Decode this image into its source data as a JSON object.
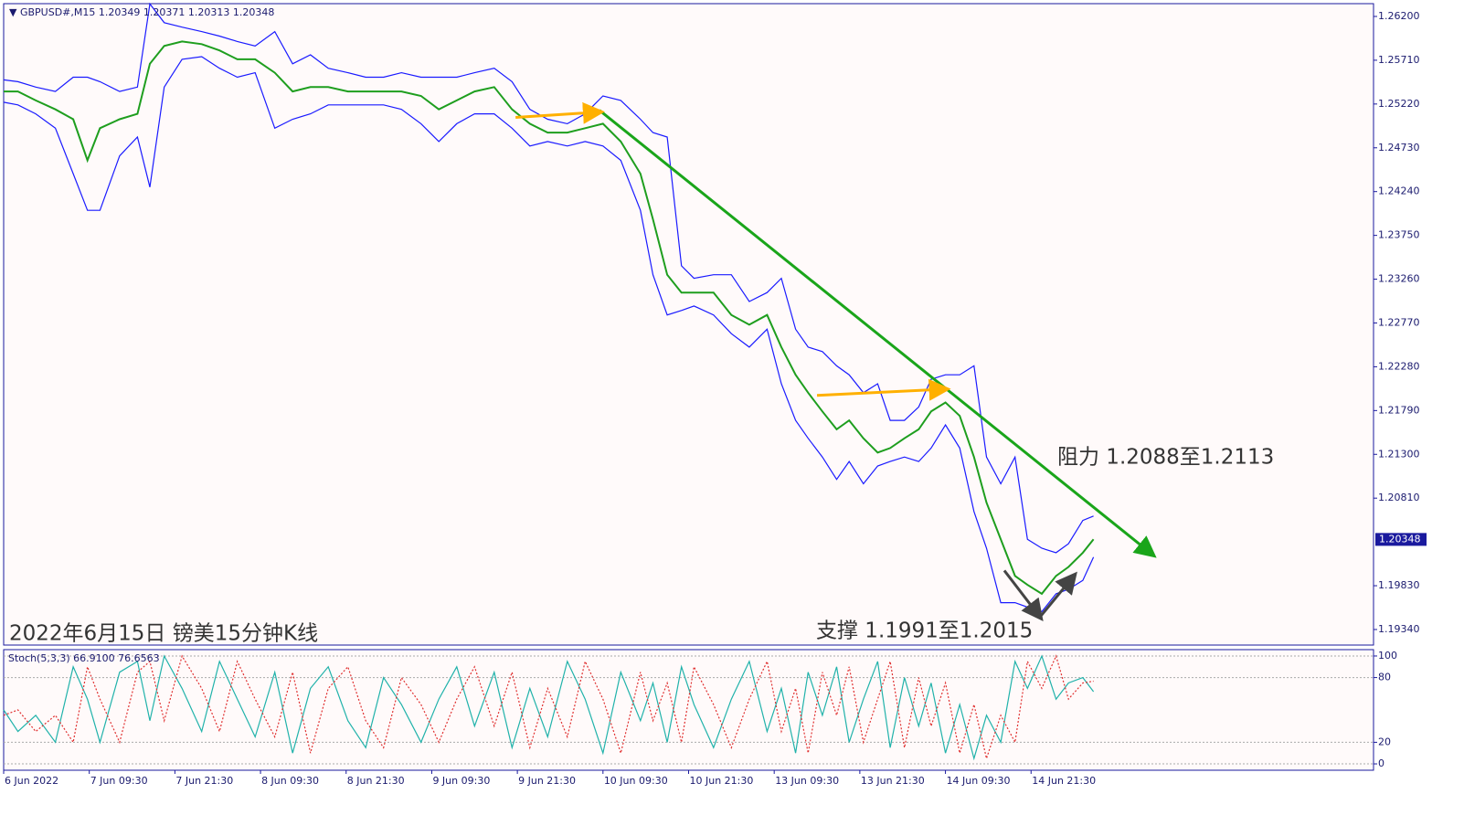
{
  "chart_data": [
    {
      "type": "line",
      "symbol": "GBPUSD#,M15",
      "ohlc": [
        1.20349,
        1.20371,
        1.20313,
        1.20348
      ],
      "last_price": 1.20348,
      "title": "2022年6月15日 镑美15分钟K线",
      "annotations": [
        "阻力 1.2088至1.2113",
        "支撑 1.1991至1.2015"
      ],
      "xlim": [
        0,
        768
      ],
      "xticks": [
        {
          "value": 0,
          "label": "6 Jun 2022"
        },
        {
          "value": 48,
          "label": "7 Jun 09:30"
        },
        {
          "value": 96,
          "label": "7 Jun 21:30"
        },
        {
          "value": 144,
          "label": "8 Jun 09:30"
        },
        {
          "value": 192,
          "label": "8 Jun 21:30"
        },
        {
          "value": 240,
          "label": "9 Jun 09:30"
        },
        {
          "value": 288,
          "label": "9 Jun 21:30"
        },
        {
          "value": 336,
          "label": "10 Jun 09:30"
        },
        {
          "value": 384,
          "label": "10 Jun 21:30"
        },
        {
          "value": 432,
          "label": "13 Jun 09:30"
        },
        {
          "value": 480,
          "label": "13 Jun 21:30"
        },
        {
          "value": 528,
          "label": "14 Jun 09:30"
        },
        {
          "value": 576,
          "label": "14 Jun 21:30"
        }
      ],
      "ylim": [
        1.19166,
        1.26343
      ],
      "yticks": [
        {
          "value": 1.262,
          "label": "1.26200"
        },
        {
          "value": 1.2571,
          "label": "1.25710"
        },
        {
          "value": 1.2522,
          "label": "1.25220"
        },
        {
          "value": 1.2473,
          "label": "1.24730"
        },
        {
          "value": 1.2424,
          "label": "1.24240"
        },
        {
          "value": 1.2375,
          "label": "1.23750"
        },
        {
          "value": 1.2326,
          "label": "1.23260"
        },
        {
          "value": 1.2277,
          "label": "1.22770"
        },
        {
          "value": 1.2228,
          "label": "1.22280"
        },
        {
          "value": 1.2179,
          "label": "1.21790"
        },
        {
          "value": 1.213,
          "label": "1.21300"
        },
        {
          "value": 1.2081,
          "label": "1.20810"
        },
        {
          "value": 1.1983,
          "label": "1.19830"
        },
        {
          "value": 1.1934,
          "label": "1.19340"
        }
      ],
      "x": [
        0,
        8,
        18,
        29,
        39,
        47,
        54,
        65,
        75,
        82,
        90,
        100,
        111,
        121,
        131,
        141,
        152,
        162,
        172,
        182,
        193,
        203,
        213,
        223,
        234,
        244,
        254,
        264,
        275,
        285,
        295,
        305,
        316,
        326,
        336,
        346,
        357,
        364,
        372,
        380,
        387,
        398,
        408,
        418,
        428,
        436,
        444,
        451,
        459,
        467,
        474,
        482,
        490,
        497,
        505,
        513,
        520,
        528,
        536,
        544,
        551,
        559,
        567,
        574,
        582,
        590,
        597,
        605,
        611
      ],
      "series": [
        {
          "color": "#1e9e1e",
          "values": [
            1.2536,
            1.2536,
            1.2526,
            1.2516,
            1.2505,
            1.2459,
            1.2495,
            1.2505,
            1.2511,
            1.2567,
            1.2587,
            1.2592,
            1.2589,
            1.2582,
            1.2572,
            1.2572,
            1.2557,
            1.2536,
            1.2541,
            1.2541,
            1.2536,
            1.2536,
            1.2536,
            1.2536,
            1.2531,
            1.2516,
            1.2526,
            1.2536,
            1.2541,
            1.2516,
            1.25,
            1.249,
            1.249,
            1.2495,
            1.25,
            1.248,
            1.2444,
            1.2393,
            1.2331,
            1.2311,
            1.2311,
            1.2311,
            1.2286,
            1.2275,
            1.2286,
            1.225,
            1.2219,
            1.2199,
            1.2178,
            1.2158,
            1.2168,
            1.2148,
            1.2132,
            1.2137,
            1.2148,
            1.2158,
            1.2178,
            1.2188,
            1.2173,
            1.2127,
            1.2076,
            1.2035,
            1.1994,
            1.1984,
            1.1974,
            1.1994,
            1.2004,
            1.202,
            1.2035
          ]
        },
        {
          "color": "#1a1aff",
          "values": [
            1.2549,
            1.2547,
            1.2541,
            1.2536,
            1.2552,
            1.2552,
            1.2547,
            1.2536,
            1.2541,
            1.2634,
            1.2613,
            1.2608,
            1.2603,
            1.2598,
            1.2592,
            1.2587,
            1.2603,
            1.2567,
            1.2577,
            1.2562,
            1.2557,
            1.2552,
            1.2552,
            1.2557,
            1.2552,
            1.2552,
            1.2552,
            1.2557,
            1.2562,
            1.2547,
            1.2516,
            1.2505,
            1.25,
            1.2511,
            1.2531,
            1.2526,
            1.2505,
            1.249,
            1.2485,
            1.2341,
            1.2327,
            1.2331,
            1.2331,
            1.2301,
            1.2311,
            1.2327,
            1.227,
            1.225,
            1.2245,
            1.2229,
            1.2219,
            1.2199,
            1.2209,
            1.2168,
            1.2168,
            1.2183,
            1.2214,
            1.2219,
            1.2219,
            1.2229,
            1.2127,
            1.2097,
            1.2127,
            1.2035,
            1.2025,
            1.202,
            1.203,
            1.2056,
            1.2061
          ]
        },
        {
          "color": "#1a1aff",
          "values": [
            1.2524,
            1.2521,
            1.2511,
            1.2495,
            1.2444,
            1.2403,
            1.2403,
            1.2464,
            1.2485,
            1.2429,
            1.2541,
            1.2572,
            1.2575,
            1.2562,
            1.2552,
            1.2557,
            1.2495,
            1.2505,
            1.2511,
            1.2521,
            1.2521,
            1.2521,
            1.2521,
            1.2516,
            1.25,
            1.248,
            1.25,
            1.2511,
            1.2511,
            1.2495,
            1.2475,
            1.248,
            1.2475,
            1.248,
            1.2475,
            1.2459,
            1.2403,
            1.2331,
            1.2286,
            1.2291,
            1.2296,
            1.2286,
            1.2265,
            1.225,
            1.227,
            1.2209,
            1.2168,
            1.2148,
            1.2127,
            1.2102,
            1.2122,
            1.2097,
            1.2117,
            1.2122,
            1.2127,
            1.2122,
            1.2137,
            1.2163,
            1.2137,
            1.2066,
            1.2025,
            1.1964,
            1.1964,
            1.1959,
            1.1954,
            1.1974,
            1.1979,
            1.1989,
            1.2015
          ]
        }
      ],
      "trendlines": [
        {
          "color": "#1aa51a",
          "x": [
            334,
            644
          ],
          "values": [
            1.2515,
            1.2018
          ]
        },
        {
          "color": "#ffb000",
          "x": [
            287,
            334
          ],
          "values": [
            1.2507,
            1.2513
          ]
        },
        {
          "color": "#ffb000",
          "x": [
            456,
            528
          ],
          "values": [
            1.2196,
            1.2203
          ]
        },
        {
          "color": "#444444",
          "x": [
            561,
            581
          ],
          "values": [
            1.2,
            1.1948
          ]
        },
        {
          "color": "#444444",
          "x": [
            581,
            600
          ],
          "values": [
            1.1948,
            1.1994
          ]
        }
      ]
    },
    {
      "type": "stochastic",
      "title": "Stoch(5,3,3)",
      "readings": [
        {
          "value": 66.91,
          "label": "66.9100"
        },
        {
          "value": 76.6563,
          "label": "76.6563"
        }
      ],
      "xlim": [
        0,
        768
      ],
      "ylim": [
        -5.9,
        105.9
      ],
      "yticks": [
        0,
        20,
        80,
        100
      ],
      "x": [
        0,
        8,
        18,
        29,
        39,
        47,
        54,
        65,
        75,
        82,
        90,
        100,
        111,
        121,
        131,
        141,
        152,
        162,
        172,
        182,
        193,
        203,
        213,
        223,
        234,
        244,
        254,
        264,
        275,
        285,
        295,
        305,
        316,
        326,
        336,
        346,
        357,
        364,
        372,
        380,
        387,
        398,
        408,
        418,
        428,
        436,
        444,
        451,
        459,
        467,
        474,
        482,
        490,
        497,
        505,
        513,
        520,
        528,
        536,
        544,
        551,
        559,
        567,
        574,
        582,
        590,
        597,
        605,
        611
      ],
      "series": [
        {
          "color": "#20b2aa",
          "values": [
            50,
            30,
            45,
            20,
            90,
            60,
            20,
            85,
            95,
            40,
            100,
            70,
            30,
            95,
            60,
            25,
            85,
            10,
            70,
            90,
            40,
            15,
            80,
            55,
            20,
            60,
            90,
            35,
            85,
            15,
            70,
            25,
            95,
            60,
            10,
            85,
            40,
            75,
            20,
            90,
            55,
            15,
            60,
            95,
            30,
            70,
            10,
            85,
            45,
            90,
            20,
            60,
            95,
            15,
            80,
            35,
            75,
            10,
            55,
            5,
            45,
            20,
            95,
            70,
            100,
            60,
            75,
            80,
            66.91
          ]
        },
        {
          "color": "#e03030",
          "values": [
            45,
            50,
            30,
            45,
            20,
            90,
            60,
            20,
            85,
            95,
            40,
            100,
            70,
            30,
            95,
            60,
            25,
            85,
            10,
            70,
            90,
            40,
            15,
            80,
            55,
            20,
            60,
            90,
            35,
            85,
            15,
            70,
            25,
            95,
            60,
            10,
            85,
            40,
            75,
            20,
            90,
            55,
            15,
            60,
            95,
            30,
            70,
            10,
            85,
            45,
            90,
            20,
            60,
            95,
            15,
            80,
            35,
            75,
            10,
            55,
            5,
            45,
            20,
            95,
            70,
            100,
            60,
            75,
            76.6563
          ]
        }
      ]
    }
  ]
}
